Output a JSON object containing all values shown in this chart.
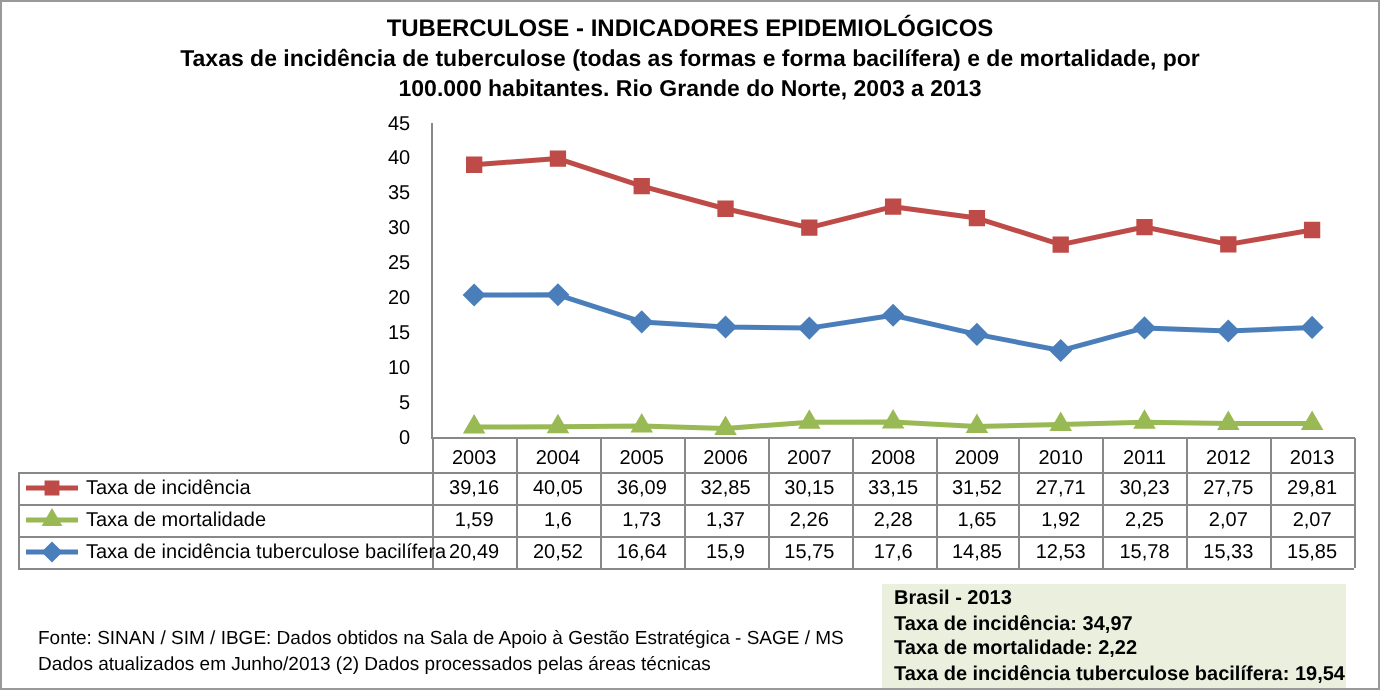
{
  "chart_data": {
    "type": "line",
    "title": "TUBERCULOSE - INDICADORES EPIDEMIOLÓGICOS",
    "subtitle": "Taxas de incidência de tuberculose (todas as formas e forma bacilífera) e de mortalidade,  por 100.000 habitantes. Rio Grande do Norte, 2003 a 2013",
    "categories": [
      "2003",
      "2004",
      "2005",
      "2006",
      "2007",
      "2008",
      "2009",
      "2010",
      "2011",
      "2012",
      "2013"
    ],
    "series": [
      {
        "name": "Taxa de incidência",
        "color": "#be4b48",
        "marker": "square",
        "values": [
          39.16,
          40.05,
          36.09,
          32.85,
          30.15,
          33.15,
          31.52,
          27.71,
          30.23,
          27.75,
          29.81
        ],
        "value_labels": [
          "39,16",
          "40,05",
          "36,09",
          "32,85",
          "30,15",
          "33,15",
          "31,52",
          "27,71",
          "30,23",
          "27,75",
          "29,81"
        ]
      },
      {
        "name": "Taxa de mortalidade",
        "color": "#98b954",
        "marker": "triangle",
        "values": [
          1.59,
          1.6,
          1.73,
          1.37,
          2.26,
          2.28,
          1.65,
          1.92,
          2.25,
          2.07,
          2.07
        ],
        "value_labels": [
          "1,59",
          "1,6",
          "1,73",
          "1,37",
          "2,26",
          "2,28",
          "1,65",
          "1,92",
          "2,25",
          "2,07",
          "2,07"
        ]
      },
      {
        "name": "Taxa de incidência tuberculose bacilífera",
        "color": "#4a7ebb",
        "marker": "diamond",
        "values": [
          20.49,
          20.52,
          16.64,
          15.9,
          15.75,
          17.6,
          14.85,
          12.53,
          15.78,
          15.33,
          15.85
        ],
        "value_labels": [
          "20,49",
          "20,52",
          "16,64",
          "15,9",
          "15,75",
          "17,6",
          "14,85",
          "12,53",
          "15,78",
          "15,33",
          "15,85"
        ]
      }
    ],
    "ylim": [
      0,
      45
    ],
    "yticks": [
      0,
      5,
      10,
      15,
      20,
      25,
      30,
      35,
      40,
      45
    ],
    "grid": false,
    "legend": "bottom",
    "annotations": [
      "Fonte: SINAN / SIM / IBGE: Dados obtidos na Sala de  Apoio  à Gestão Estratégica - SAGE / MS",
      "Dados atualizados em Junho/2013 (2) Dados processados pelas áreas técnicas",
      "Brasil  - 2013",
      "Taxa  de incidência:  34,97",
      "Taxa  de mortalidade: 2,22",
      "Taxa  de incidência  tuberculose bacilífera:  19,54"
    ]
  }
}
